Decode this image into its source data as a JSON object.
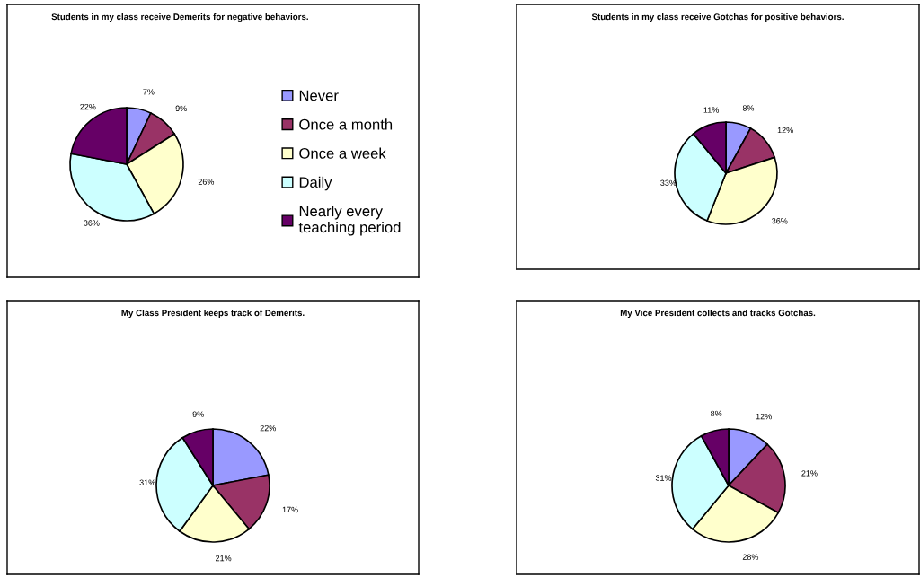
{
  "chart_data": [
    {
      "type": "pie",
      "title": "Students in my class receive Demerits for negative behaviors.",
      "categories": [
        "Never",
        "Once a month",
        "Once a week",
        "Daily",
        "Nearly every\nteaching period"
      ],
      "values": [
        7,
        9,
        26,
        36,
        22
      ],
      "value_labels": [
        "7%",
        "9%",
        "26%",
        "36%",
        "22%"
      ],
      "colors": [
        "#9999ff",
        "#993366",
        "#ffffcc",
        "#ccffff",
        "#660066"
      ],
      "legend": "right"
    },
    {
      "type": "pie",
      "title": "Students in my class receive Gotchas for positive behaviors.",
      "values": [
        8,
        12,
        36,
        33,
        11
      ],
      "value_labels": [
        "8%",
        "12%",
        "36%",
        "33%",
        "11%"
      ],
      "colors": [
        "#9999ff",
        "#993366",
        "#ffffcc",
        "#ccffff",
        "#660066"
      ]
    },
    {
      "type": "pie",
      "title": "My Class President keeps track of Demerits.",
      "values": [
        22,
        17,
        21,
        31,
        9
      ],
      "value_labels": [
        "22%",
        "17%",
        "21%",
        "31%",
        "9%"
      ],
      "colors": [
        "#9999ff",
        "#993366",
        "#ffffcc",
        "#ccffff",
        "#660066"
      ]
    },
    {
      "type": "pie",
      "title": "My Vice President collects and tracks Gotchas.",
      "values": [
        12,
        21,
        28,
        31,
        8
      ],
      "value_labels": [
        "12%",
        "21%",
        "28%",
        "31%",
        "8%"
      ],
      "colors": [
        "#9999ff",
        "#993366",
        "#ffffcc",
        "#ccffff",
        "#660066"
      ]
    }
  ]
}
